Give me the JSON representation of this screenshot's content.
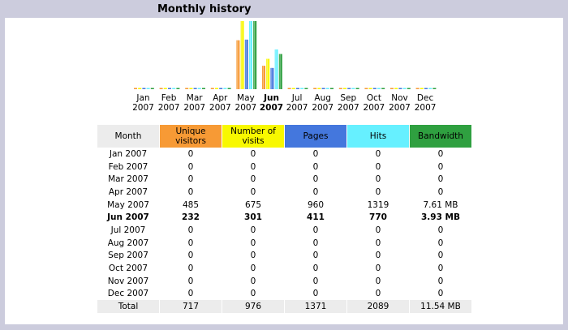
{
  "section_title": "Monthly history",
  "colors": {
    "unique_visitors": "#f79a35",
    "number_of_visits": "#f8f800",
    "pages": "#4477dd",
    "hits": "#66f0ff",
    "bandwidth": "#2fa040"
  },
  "chart_data": {
    "type": "bar",
    "categories": [
      "Jan 2007",
      "Feb 2007",
      "Mar 2007",
      "Apr 2007",
      "May 2007",
      "Jun 2007",
      "Jul 2007",
      "Aug 2007",
      "Sep 2007",
      "Oct 2007",
      "Nov 2007",
      "Dec 2007"
    ],
    "series": [
      {
        "name": "Unique visitors",
        "values": [
          0,
          0,
          0,
          0,
          485,
          232,
          0,
          0,
          0,
          0,
          0,
          0
        ]
      },
      {
        "name": "Number of visits",
        "values": [
          0,
          0,
          0,
          0,
          675,
          301,
          0,
          0,
          0,
          0,
          0,
          0
        ]
      },
      {
        "name": "Pages",
        "values": [
          0,
          0,
          0,
          0,
          960,
          411,
          0,
          0,
          0,
          0,
          0,
          0
        ]
      },
      {
        "name": "Hits",
        "values": [
          0,
          0,
          0,
          0,
          1319,
          770,
          0,
          0,
          0,
          0,
          0,
          0
        ]
      },
      {
        "name": "Bandwidth",
        "values": [
          0,
          0,
          0,
          0,
          7.61,
          3.93,
          0,
          0,
          0,
          0,
          0,
          0
        ]
      }
    ]
  },
  "month_labels": [
    {
      "m": "Jan",
      "y": "2007",
      "bold": false
    },
    {
      "m": "Feb",
      "y": "2007",
      "bold": false
    },
    {
      "m": "Mar",
      "y": "2007",
      "bold": false
    },
    {
      "m": "Apr",
      "y": "2007",
      "bold": false
    },
    {
      "m": "May",
      "y": "2007",
      "bold": false
    },
    {
      "m": "Jun",
      "y": "2007",
      "bold": true
    },
    {
      "m": "Jul",
      "y": "2007",
      "bold": false
    },
    {
      "m": "Aug",
      "y": "2007",
      "bold": false
    },
    {
      "m": "Sep",
      "y": "2007",
      "bold": false
    },
    {
      "m": "Oct",
      "y": "2007",
      "bold": false
    },
    {
      "m": "Nov",
      "y": "2007",
      "bold": false
    },
    {
      "m": "Dec",
      "y": "2007",
      "bold": false
    }
  ],
  "table": {
    "headers": {
      "month": "Month",
      "unique_visitors": "Unique visitors",
      "number_of_visits": "Number of visits",
      "pages": "Pages",
      "hits": "Hits",
      "bandwidth": "Bandwidth"
    },
    "rows": [
      {
        "month": "Jan 2007",
        "uv": "0",
        "nv": "0",
        "pg": "0",
        "ht": "0",
        "bw": "0",
        "bold": false
      },
      {
        "month": "Feb 2007",
        "uv": "0",
        "nv": "0",
        "pg": "0",
        "ht": "0",
        "bw": "0",
        "bold": false
      },
      {
        "month": "Mar 2007",
        "uv": "0",
        "nv": "0",
        "pg": "0",
        "ht": "0",
        "bw": "0",
        "bold": false
      },
      {
        "month": "Apr 2007",
        "uv": "0",
        "nv": "0",
        "pg": "0",
        "ht": "0",
        "bw": "0",
        "bold": false
      },
      {
        "month": "May 2007",
        "uv": "485",
        "nv": "675",
        "pg": "960",
        "ht": "1319",
        "bw": "7.61 MB",
        "bold": false
      },
      {
        "month": "Jun 2007",
        "uv": "232",
        "nv": "301",
        "pg": "411",
        "ht": "770",
        "bw": "3.93 MB",
        "bold": true
      },
      {
        "month": "Jul 2007",
        "uv": "0",
        "nv": "0",
        "pg": "0",
        "ht": "0",
        "bw": "0",
        "bold": false
      },
      {
        "month": "Aug 2007",
        "uv": "0",
        "nv": "0",
        "pg": "0",
        "ht": "0",
        "bw": "0",
        "bold": false
      },
      {
        "month": "Sep 2007",
        "uv": "0",
        "nv": "0",
        "pg": "0",
        "ht": "0",
        "bw": "0",
        "bold": false
      },
      {
        "month": "Oct 2007",
        "uv": "0",
        "nv": "0",
        "pg": "0",
        "ht": "0",
        "bw": "0",
        "bold": false
      },
      {
        "month": "Nov 2007",
        "uv": "0",
        "nv": "0",
        "pg": "0",
        "ht": "0",
        "bw": "0",
        "bold": false
      },
      {
        "month": "Dec 2007",
        "uv": "0",
        "nv": "0",
        "pg": "0",
        "ht": "0",
        "bw": "0",
        "bold": false
      }
    ],
    "total": {
      "label": "Total",
      "uv": "717",
      "nv": "976",
      "pg": "1371",
      "ht": "2089",
      "bw": "11.54 MB"
    }
  }
}
